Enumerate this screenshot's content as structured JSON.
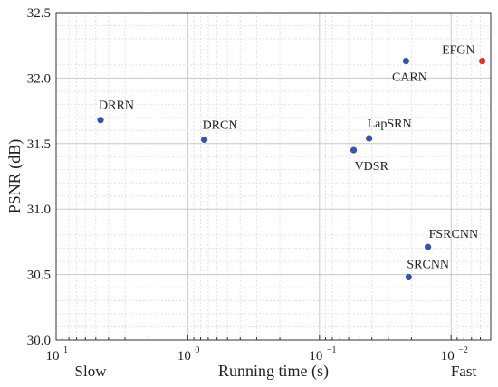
{
  "chart_data": {
    "type": "scatter",
    "title": "",
    "xlabel": "Running time (s)",
    "ylabel": "PSNR (dB)",
    "x_scale": "log",
    "x_reversed": true,
    "xlim": [
      10,
      0.005
    ],
    "ylim": [
      30.0,
      32.5
    ],
    "grid": true,
    "x_ticks": [
      {
        "value": 10,
        "base": "10",
        "exp": "1"
      },
      {
        "value": 1,
        "base": "10",
        "exp": "0"
      },
      {
        "value": 0.1,
        "base": "10",
        "exp": "−1"
      },
      {
        "value": 0.01,
        "base": "10",
        "exp": "−2"
      }
    ],
    "y_ticks": [
      "30.0",
      "30.5",
      "31.0",
      "31.5",
      "32.0",
      "32.5"
    ],
    "extra_labels": {
      "left": "Slow",
      "right": "Fast"
    },
    "points": [
      {
        "name": "DRRN",
        "x": 4.6,
        "y": 31.68,
        "color": "#3355aa"
      },
      {
        "name": "DRCN",
        "x": 0.75,
        "y": 31.53,
        "color": "#3355aa"
      },
      {
        "name": "LapSRN",
        "x": 0.042,
        "y": 31.54,
        "color": "#3355aa"
      },
      {
        "name": "VDSR",
        "x": 0.055,
        "y": 31.45,
        "color": "#3355aa"
      },
      {
        "name": "CARN",
        "x": 0.022,
        "y": 32.13,
        "color": "#3355aa"
      },
      {
        "name": "EFGN",
        "x": 0.0058,
        "y": 32.13,
        "color": "#e03030"
      },
      {
        "name": "FSRCNN",
        "x": 0.015,
        "y": 30.71,
        "color": "#3355aa"
      },
      {
        "name": "SRCNN",
        "x": 0.021,
        "y": 30.48,
        "color": "#3355aa"
      }
    ]
  }
}
